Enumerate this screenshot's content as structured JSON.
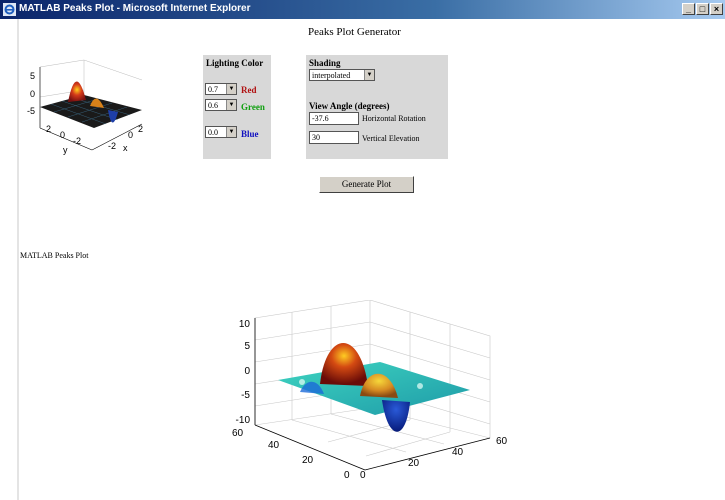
{
  "window": {
    "title": "MATLAB Peaks Plot - Microsoft Internet Explorer",
    "buttons": [
      "_",
      "□",
      "×"
    ]
  },
  "page": {
    "heading": "Peaks Plot Generator"
  },
  "thumbnail": {
    "z_ticks": [
      "5",
      "0",
      "-5"
    ],
    "y_ticks": [
      "2",
      "0",
      "-2"
    ],
    "x_ticks": [
      "-2",
      "0",
      "2"
    ],
    "y_label": "y",
    "x_label": "x"
  },
  "lighting": {
    "title": "Lighting Color",
    "red": {
      "value": "0.7",
      "label": "Red",
      "color": "#b01010"
    },
    "green": {
      "value": "0.6",
      "label": "Green",
      "color": "#10a010"
    },
    "blue": {
      "value": "0.0",
      "label": "Blue",
      "color": "#1010c0"
    }
  },
  "shading": {
    "title": "Shading",
    "value": "interpolated",
    "view_title": "View Angle (degrees)",
    "horizontal": {
      "value": "-37.6",
      "label": "Horizontal Rotation"
    },
    "vertical": {
      "value": "30",
      "label": "Vertical Elevation"
    }
  },
  "generate_button": "Generate Plot",
  "plot": {
    "caption": "MATLAB Peaks Plot",
    "z_ticks": [
      "10",
      "5",
      "0",
      "-5",
      "-10"
    ],
    "y_ticks": [
      "60",
      "40",
      "20",
      "0"
    ],
    "x_ticks": [
      "0",
      "20",
      "40",
      "60"
    ]
  }
}
